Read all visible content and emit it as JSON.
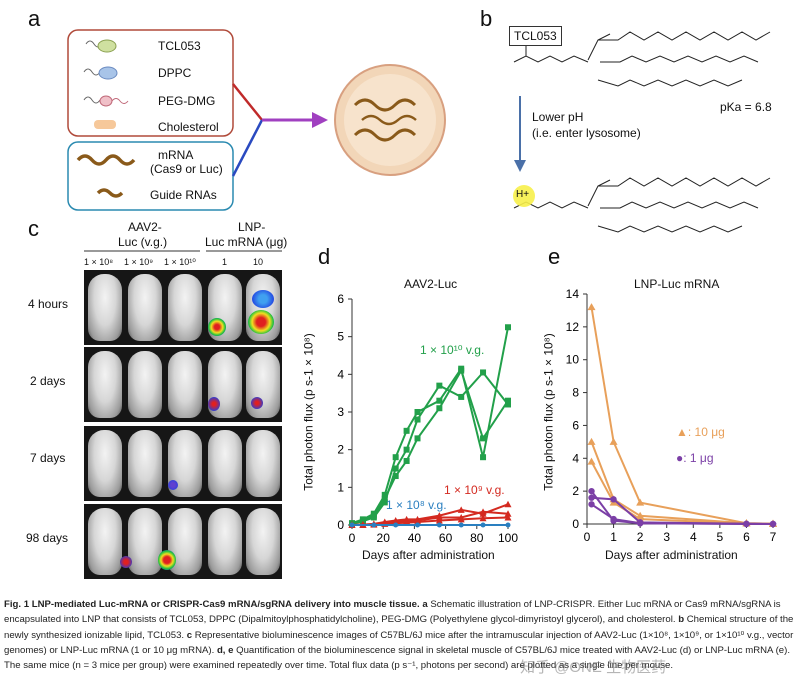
{
  "panels": {
    "a": "a",
    "b": "b",
    "c": "c",
    "d": "d",
    "e": "e"
  },
  "panel_a": {
    "lipid_legend": [
      "TCL053",
      "DPPC",
      "PEG-DMG",
      "Cholesterol"
    ],
    "rna_legend": [
      "mRNA",
      "(Cas9 or Luc)",
      "Guide RNAs"
    ]
  },
  "panel_b": {
    "compound": "TCL053",
    "arrow_text_1": "Lower pH",
    "arrow_text_2": "(i.e. enter lysosome)",
    "pka": "pKa = 6.8",
    "amine_label": "H+"
  },
  "panel_c": {
    "group1_line1": "AAV2-",
    "group1_line2": "Luc (v.g.)",
    "group2_line1": "LNP-",
    "group2_line2": "Luc mRNA (μg)",
    "doses": [
      "1 × 10⁸",
      "1 × 10⁹",
      "1 × 10¹⁰",
      "1",
      "10"
    ],
    "timepoints": [
      "4 hours",
      "2 days",
      "7 days",
      "98 days"
    ]
  },
  "chart_data": [
    {
      "type": "line",
      "title": "AAV2-Luc",
      "xlabel": "Days after administration",
      "ylabel": "Total photon flux (p s-1 × 10⁸)",
      "xlim": [
        0,
        100
      ],
      "ylim": [
        0,
        6
      ],
      "xticks": [
        0,
        20,
        40,
        60,
        80,
        100
      ],
      "yticks": [
        0,
        1,
        2,
        3,
        4,
        5,
        6
      ],
      "annotations": [
        {
          "text": "1 × 10¹⁰ v.g.",
          "color": "#22a04a"
        },
        {
          "text": "1 × 10⁹ v.g.",
          "color": "#d42a20"
        },
        {
          "text": "1 × 10⁸ v.g.",
          "color": "#2a7fc0"
        }
      ],
      "series": [
        {
          "group": "1e10",
          "color": "#22a04a",
          "points": [
            [
              0,
              0.05
            ],
            [
              7,
              0.15
            ],
            [
              14,
              0.3
            ],
            [
              21,
              0.8
            ],
            [
              28,
              1.8
            ],
            [
              35,
              2.5
            ],
            [
              42,
              3.0
            ],
            [
              56,
              3.3
            ],
            [
              70,
              4.15
            ],
            [
              84,
              1.8
            ],
            [
              100,
              5.25
            ]
          ]
        },
        {
          "group": "1e10",
          "color": "#22a04a",
          "points": [
            [
              0,
              0.02
            ],
            [
              7,
              0.1
            ],
            [
              14,
              0.2
            ],
            [
              21,
              0.6
            ],
            [
              28,
              1.5
            ],
            [
              35,
              2.0
            ],
            [
              42,
              2.8
            ],
            [
              56,
              3.7
            ],
            [
              70,
              3.4
            ],
            [
              84,
              4.05
            ],
            [
              100,
              3.2
            ]
          ]
        },
        {
          "group": "1e10",
          "color": "#22a04a",
          "points": [
            [
              0,
              0.03
            ],
            [
              7,
              0.12
            ],
            [
              14,
              0.25
            ],
            [
              21,
              0.7
            ],
            [
              28,
              1.3
            ],
            [
              35,
              1.7
            ],
            [
              42,
              2.3
            ],
            [
              56,
              3.1
            ],
            [
              70,
              4.1
            ],
            [
              84,
              2.3
            ],
            [
              100,
              3.3
            ]
          ]
        },
        {
          "group": "1e9",
          "color": "#d42a20",
          "points": [
            [
              0,
              0
            ],
            [
              7,
              0.01
            ],
            [
              14,
              0.03
            ],
            [
              21,
              0.08
            ],
            [
              28,
              0.12
            ],
            [
              35,
              0.15
            ],
            [
              42,
              0.15
            ],
            [
              56,
              0.25
            ],
            [
              70,
              0.4
            ],
            [
              84,
              0.3
            ],
            [
              100,
              0.55
            ]
          ]
        },
        {
          "group": "1e9",
          "color": "#d42a20",
          "points": [
            [
              0,
              0
            ],
            [
              7,
              0.01
            ],
            [
              14,
              0.02
            ],
            [
              21,
              0.05
            ],
            [
              28,
              0.1
            ],
            [
              35,
              0.1
            ],
            [
              42,
              0.12
            ],
            [
              56,
              0.2
            ],
            [
              70,
              0.2
            ],
            [
              84,
              0.35
            ],
            [
              100,
              0.3
            ]
          ]
        },
        {
          "group": "1e9",
          "color": "#d42a20",
          "points": [
            [
              0,
              0
            ],
            [
              7,
              0
            ],
            [
              14,
              0.01
            ],
            [
              21,
              0.03
            ],
            [
              28,
              0.05
            ],
            [
              35,
              0.06
            ],
            [
              42,
              0.08
            ],
            [
              56,
              0.12
            ],
            [
              70,
              0.15
            ],
            [
              84,
              0.18
            ],
            [
              100,
              0.2
            ]
          ]
        },
        {
          "group": "1e8",
          "color": "#2a7fc0",
          "points": [
            [
              0,
              0
            ],
            [
              14,
              0
            ],
            [
              28,
              0
            ],
            [
              42,
              0
            ],
            [
              56,
              0
            ],
            [
              70,
              0
            ],
            [
              84,
              0
            ],
            [
              100,
              0
            ]
          ]
        }
      ]
    },
    {
      "type": "line",
      "title": "LNP-Luc mRNA",
      "xlabel": "Days after administration",
      "ylabel": "Total photon flux (p s-1 × 10⁸)",
      "xlim": [
        0,
        7
      ],
      "ylim": [
        0,
        14
      ],
      "xticks": [
        0,
        1,
        2,
        3,
        4,
        5,
        6,
        7
      ],
      "yticks": [
        0,
        2,
        4,
        6,
        8,
        10,
        12,
        14
      ],
      "legend": [
        {
          "text": "▲: 10 μg",
          "color": "#e8a05a"
        },
        {
          "text": "●: 1 μg",
          "color": "#7b3fa6"
        }
      ],
      "series": [
        {
          "group": "10ug",
          "color": "#e8a05a",
          "points": [
            [
              0.17,
              13.2
            ],
            [
              1,
              5.0
            ],
            [
              2,
              1.3
            ],
            [
              6,
              0.05
            ],
            [
              7,
              0.02
            ]
          ]
        },
        {
          "group": "10ug",
          "color": "#e8a05a",
          "points": [
            [
              0.17,
              5.0
            ],
            [
              1,
              1.5
            ],
            [
              2,
              0.5
            ],
            [
              6,
              0.05
            ],
            [
              7,
              0.02
            ]
          ]
        },
        {
          "group": "10ug",
          "color": "#e8a05a",
          "points": [
            [
              0.17,
              3.8
            ],
            [
              1,
              1.3
            ],
            [
              2,
              0.3
            ],
            [
              6,
              0.03
            ],
            [
              7,
              0.01
            ]
          ]
        },
        {
          "group": "1ug",
          "color": "#7b3fa6",
          "points": [
            [
              0.17,
              2.0
            ],
            [
              1,
              0.2
            ],
            [
              2,
              0.05
            ],
            [
              6,
              0.01
            ],
            [
              7,
              0.0
            ]
          ]
        },
        {
          "group": "1ug",
          "color": "#7b3fa6",
          "points": [
            [
              0.17,
              1.6
            ],
            [
              1,
              1.5
            ],
            [
              2,
              0.1
            ],
            [
              6,
              0.01
            ],
            [
              7,
              0.0
            ]
          ]
        },
        {
          "group": "1ug",
          "color": "#7b3fa6",
          "points": [
            [
              0.17,
              1.2
            ],
            [
              1,
              0.3
            ],
            [
              2,
              0.05
            ],
            [
              6,
              0.0
            ],
            [
              7,
              0.0
            ]
          ]
        }
      ]
    }
  ],
  "caption": {
    "title": "Fig. 1 LNP-mediated Luc-mRNA or CRISPR-Cas9 mRNA/sgRNA delivery into muscle tissue.",
    "a_label": "a",
    "a_text": " Schematic illustration of LNP-CRISPR. Either Luc mRNA or Cas9 mRNA/sgRNA is encapsulated into LNP that consists of TCL053, DPPC (Dipalmitoylphosphatidylcholine), PEG-DMG (Polyethylene glycol-dimyristoyl glycerol), and cholesterol.",
    "b_label": "b",
    "b_text": " Chemical structure of the newly synthesized ionizable lipid, TCL053.",
    "c_label": "c",
    "c_text": " Representative bioluminescence images of C57BL/6J mice after the intramuscular injection of AAV2-Luc (1×10⁸, 1×10⁹, or 1×10¹⁰ v.g., vector genomes) or LNP-Luc mRNA (1 or 10 μg mRNA).",
    "de_label": "d, e",
    "de_text": " Quantification of the bioluminescence signal in skeletal muscle of C57BL/6J mice treated with AAV2-Luc (d) or LNP-Luc mRNA (e). The same mice (n = 3 mice per group) were examined repeatedly over time. Total flux data (p s⁻¹, photons per second) are plotted as a single line per mouse."
  },
  "watermark": "知乎 @ONE 生物医药"
}
